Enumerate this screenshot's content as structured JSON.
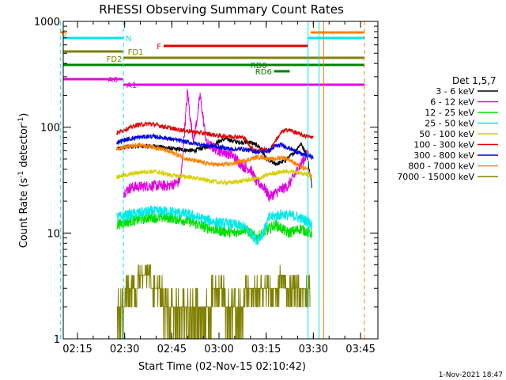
{
  "chart_data": {
    "type": "line",
    "title": "RHESSI Observing Summary Count Rates",
    "xlabel": "Start Time (02-Nov-15 02:10:42)",
    "ylabel_main": "Count Rate (s",
    "ylabel_sup1": "-1",
    "ylabel_mid": " detector",
    "ylabel_sup2": "-1",
    "ylabel_end": ")",
    "y_scale": "log",
    "ylim": [
      1,
      1000
    ],
    "xlim_minutes": [
      9.3,
      50.3
    ],
    "x_ticks": [
      {
        "minute": 15,
        "label": "02:15"
      },
      {
        "minute": 30,
        "label": "02:30"
      },
      {
        "minute": 45,
        "label": "02:45"
      },
      {
        "minute": 60,
        "label": "03:00"
      },
      {
        "minute": 75,
        "label": "03:15"
      },
      {
        "minute": 90,
        "label": "03:30"
      },
      {
        "minute": 105,
        "label": "03:45"
      }
    ],
    "y_ticks": [
      {
        "value": 1,
        "label": "1"
      },
      {
        "value": 10,
        "label": "10"
      },
      {
        "value": 100,
        "label": "100"
      },
      {
        "value": 1000,
        "label": "1000"
      }
    ],
    "legend_title": "Det 1,5,7",
    "series": [
      {
        "name": "3 - 6 keV",
        "color": "#000000"
      },
      {
        "name": "6 - 12 keV",
        "color": "#e000e0"
      },
      {
        "name": "12 - 25 keV",
        "color": "#00e000"
      },
      {
        "name": "25 - 50 keV",
        "color": "#00e8e8"
      },
      {
        "name": "50 - 100 keV",
        "color": "#d8d000"
      },
      {
        "name": "100 - 300 keV",
        "color": "#e00000"
      },
      {
        "name": "300 - 800 keV",
        "color": "#0000e0"
      },
      {
        "name": "800 - 7000 keV",
        "color": "#ff8000"
      },
      {
        "name": "7000 - 15000 keV",
        "color": "#808000"
      }
    ],
    "series_profiles": [
      {
        "name": "3 - 6 keV",
        "start": 27.5,
        "end": 89.5,
        "points": [
          [
            27.5,
            62
          ],
          [
            32,
            66
          ],
          [
            40,
            66
          ],
          [
            46,
            62
          ],
          [
            52,
            60
          ],
          [
            58,
            68
          ],
          [
            62,
            78
          ],
          [
            66,
            72
          ],
          [
            70,
            72
          ],
          [
            73,
            65
          ],
          [
            75,
            50
          ],
          [
            78,
            45
          ],
          [
            81,
            48
          ],
          [
            84,
            58
          ],
          [
            86,
            70
          ],
          [
            88,
            55
          ],
          [
            89.5,
            28
          ]
        ]
      },
      {
        "name": "6 - 12 keV",
        "start": 29.6,
        "end": 88.5,
        "points": [
          [
            29.6,
            24
          ],
          [
            32,
            27
          ],
          [
            38,
            28
          ],
          [
            44,
            28
          ],
          [
            47,
            30
          ],
          [
            48,
            35
          ],
          [
            49,
            90
          ],
          [
            50,
            220
          ],
          [
            51,
            110
          ],
          [
            52,
            75
          ],
          [
            53,
            120
          ],
          [
            54,
            200
          ],
          [
            55,
            120
          ],
          [
            56,
            70
          ],
          [
            60,
            60
          ],
          [
            64,
            55
          ],
          [
            68,
            42
          ],
          [
            70,
            40
          ],
          [
            72,
            30
          ],
          [
            74,
            28
          ],
          [
            76,
            22
          ],
          [
            79,
            25
          ],
          [
            82,
            28
          ],
          [
            84,
            35
          ],
          [
            86,
            45
          ],
          [
            88,
            55
          ]
        ]
      },
      {
        "name": "12 - 25 keV",
        "start": 27.5,
        "end": 89.5,
        "points": [
          [
            27.5,
            12
          ],
          [
            32,
            13
          ],
          [
            38,
            14
          ],
          [
            44,
            14
          ],
          [
            50,
            13
          ],
          [
            55,
            11.5
          ],
          [
            60,
            10.5
          ],
          [
            65,
            10
          ],
          [
            68,
            11
          ],
          [
            70,
            10
          ],
          [
            72,
            9
          ],
          [
            74,
            10
          ],
          [
            76,
            11
          ],
          [
            78,
            12
          ],
          [
            80,
            11
          ],
          [
            82,
            10
          ],
          [
            86,
            11
          ],
          [
            89,
            10
          ]
        ]
      },
      {
        "name": "25 - 50 keV",
        "start": 27.5,
        "end": 89.5,
        "points": [
          [
            27.5,
            14
          ],
          [
            32,
            15
          ],
          [
            38,
            16
          ],
          [
            44,
            16
          ],
          [
            50,
            15
          ],
          [
            55,
            13.5
          ],
          [
            60,
            12.5
          ],
          [
            65,
            12
          ],
          [
            68,
            11.5
          ],
          [
            70,
            10
          ],
          [
            72,
            8.5
          ],
          [
            74,
            10
          ],
          [
            76,
            14
          ],
          [
            80,
            15
          ],
          [
            84,
            14.5
          ],
          [
            88,
            13
          ],
          [
            89.5,
            12
          ]
        ]
      },
      {
        "name": "50 - 100 keV",
        "start": 27.5,
        "end": 89.5,
        "points": [
          [
            27.5,
            34
          ],
          [
            32,
            36
          ],
          [
            36,
            38
          ],
          [
            40,
            38
          ],
          [
            45,
            35
          ],
          [
            50,
            34
          ],
          [
            55,
            32
          ],
          [
            60,
            30
          ],
          [
            64,
            30
          ],
          [
            67,
            31
          ],
          [
            70,
            32
          ],
          [
            73,
            33
          ],
          [
            76,
            36
          ],
          [
            80,
            38
          ],
          [
            84,
            38
          ],
          [
            88,
            36
          ],
          [
            89.5,
            34
          ]
        ]
      },
      {
        "name": "100 - 300 keV",
        "start": 27.5,
        "end": 90,
        "points": [
          [
            27.5,
            88
          ],
          [
            30,
            95
          ],
          [
            34,
            105
          ],
          [
            38,
            108
          ],
          [
            42,
            102
          ],
          [
            46,
            96
          ],
          [
            50,
            92
          ],
          [
            55,
            88
          ],
          [
            60,
            83
          ],
          [
            64,
            82
          ],
          [
            68,
            80
          ],
          [
            70,
            65
          ],
          [
            72,
            60
          ],
          [
            74,
            62
          ],
          [
            76,
            60
          ],
          [
            78,
            75
          ],
          [
            80,
            90
          ],
          [
            82,
            95
          ],
          [
            84,
            90
          ],
          [
            86,
            85
          ],
          [
            88,
            82
          ],
          [
            90,
            80
          ]
        ]
      },
      {
        "name": "300 - 800 keV",
        "start": 27.5,
        "end": 90,
        "points": [
          [
            27.5,
            72
          ],
          [
            30,
            76
          ],
          [
            34,
            80
          ],
          [
            38,
            82
          ],
          [
            42,
            80
          ],
          [
            46,
            76
          ],
          [
            50,
            72
          ],
          [
            55,
            68
          ],
          [
            60,
            65
          ],
          [
            64,
            62
          ],
          [
            68,
            62
          ],
          [
            70,
            60
          ],
          [
            73,
            58
          ],
          [
            76,
            60
          ],
          [
            78,
            66
          ],
          [
            80,
            68
          ],
          [
            82,
            64
          ],
          [
            84,
            60
          ],
          [
            86,
            56
          ],
          [
            88,
            54
          ],
          [
            90,
            52
          ]
        ]
      },
      {
        "name": "800 - 7000 keV",
        "start": 27.5,
        "end": 89.5,
        "points": [
          [
            27.5,
            62
          ],
          [
            30,
            65
          ],
          [
            34,
            68
          ],
          [
            38,
            66
          ],
          [
            42,
            62
          ],
          [
            46,
            56
          ],
          [
            50,
            50
          ],
          [
            55,
            46
          ],
          [
            60,
            44
          ],
          [
            64,
            45
          ],
          [
            68,
            48
          ],
          [
            70,
            50
          ],
          [
            72,
            52
          ],
          [
            74,
            52
          ],
          [
            76,
            50
          ],
          [
            78,
            50
          ],
          [
            80,
            52
          ],
          [
            82,
            50
          ],
          [
            84,
            46
          ],
          [
            86,
            42
          ],
          [
            88,
            40
          ],
          [
            89.5,
            34
          ]
        ]
      },
      {
        "name": "7000 - 15000 keV",
        "start": 27.5,
        "end": 89,
        "points": [
          [
            27.5,
            1.5
          ],
          [
            30,
            2.5
          ],
          [
            34,
            3.5
          ],
          [
            38,
            3.6
          ],
          [
            42,
            2.6
          ],
          [
            45,
            1.6
          ],
          [
            50,
            1.6
          ],
          [
            55,
            2.4
          ],
          [
            60,
            2.6
          ],
          [
            64,
            2.4
          ],
          [
            68,
            2.5
          ],
          [
            72,
            2.8
          ],
          [
            76,
            3.2
          ],
          [
            80,
            3.6
          ],
          [
            84,
            3.2
          ],
          [
            88,
            3.0
          ],
          [
            89,
            2.8
          ]
        ]
      }
    ],
    "vertical_lines": [
      {
        "minute": 9.55,
        "color": "#00e8e8",
        "style": "dashed"
      },
      {
        "minute": 29.6,
        "color": "#00e8e8",
        "style": "dashed"
      },
      {
        "minute": 88.3,
        "color": "#00e8e8",
        "style": "solid"
      },
      {
        "minute": 91.8,
        "color": "#00e8e8",
        "style": "solid"
      },
      {
        "minute": 93.3,
        "color": "#ff8000",
        "style": "solid"
      },
      {
        "minute": 106.2,
        "color": "#ff8000",
        "style": "dashed"
      }
    ],
    "state_bars": [
      {
        "label": "S",
        "color": "#ff8000",
        "label_color": "#ff8000",
        "segments": [
          [
            9.3,
            9.55
          ],
          [
            89.1,
            106.3
          ]
        ]
      },
      {
        "label": "N",
        "color": "#00e8e8",
        "label_color": "#00e8e8",
        "segments": [
          [
            9.3,
            29.6
          ],
          [
            88.3,
            106.3
          ]
        ]
      },
      {
        "label": "F",
        "color": "#e00000",
        "label_color": "#e00000",
        "segments": [
          [
            42.4,
            88.3
          ]
        ]
      },
      {
        "label": "FD1",
        "color": "#808000",
        "label_color": "#808000",
        "segments": [
          [
            9.3,
            29.4
          ]
        ]
      },
      {
        "label": "FD2",
        "color": "#808000",
        "label_color": "#808000",
        "segments": [
          [
            29.6,
            106.3
          ]
        ]
      },
      {
        "label": "RD0",
        "color": "#008000",
        "label_color": "#008000",
        "segments": [
          [
            9.3,
            106.3
          ]
        ]
      },
      {
        "label": "RD6",
        "color": "#008000",
        "label_color": "#008000",
        "segments": [
          [
            77.5,
            82.5
          ]
        ]
      },
      {
        "label": "A0",
        "color": "#e000e0",
        "label_color": "#e000e0",
        "segments": [
          [
            9.3,
            29.4
          ]
        ]
      },
      {
        "label": "A1",
        "color": "#e000e0",
        "label_color": "#e000e0",
        "segments": [
          [
            29.6,
            106.3
          ]
        ]
      }
    ],
    "timestamp": "1-Nov-2021 18:47"
  }
}
